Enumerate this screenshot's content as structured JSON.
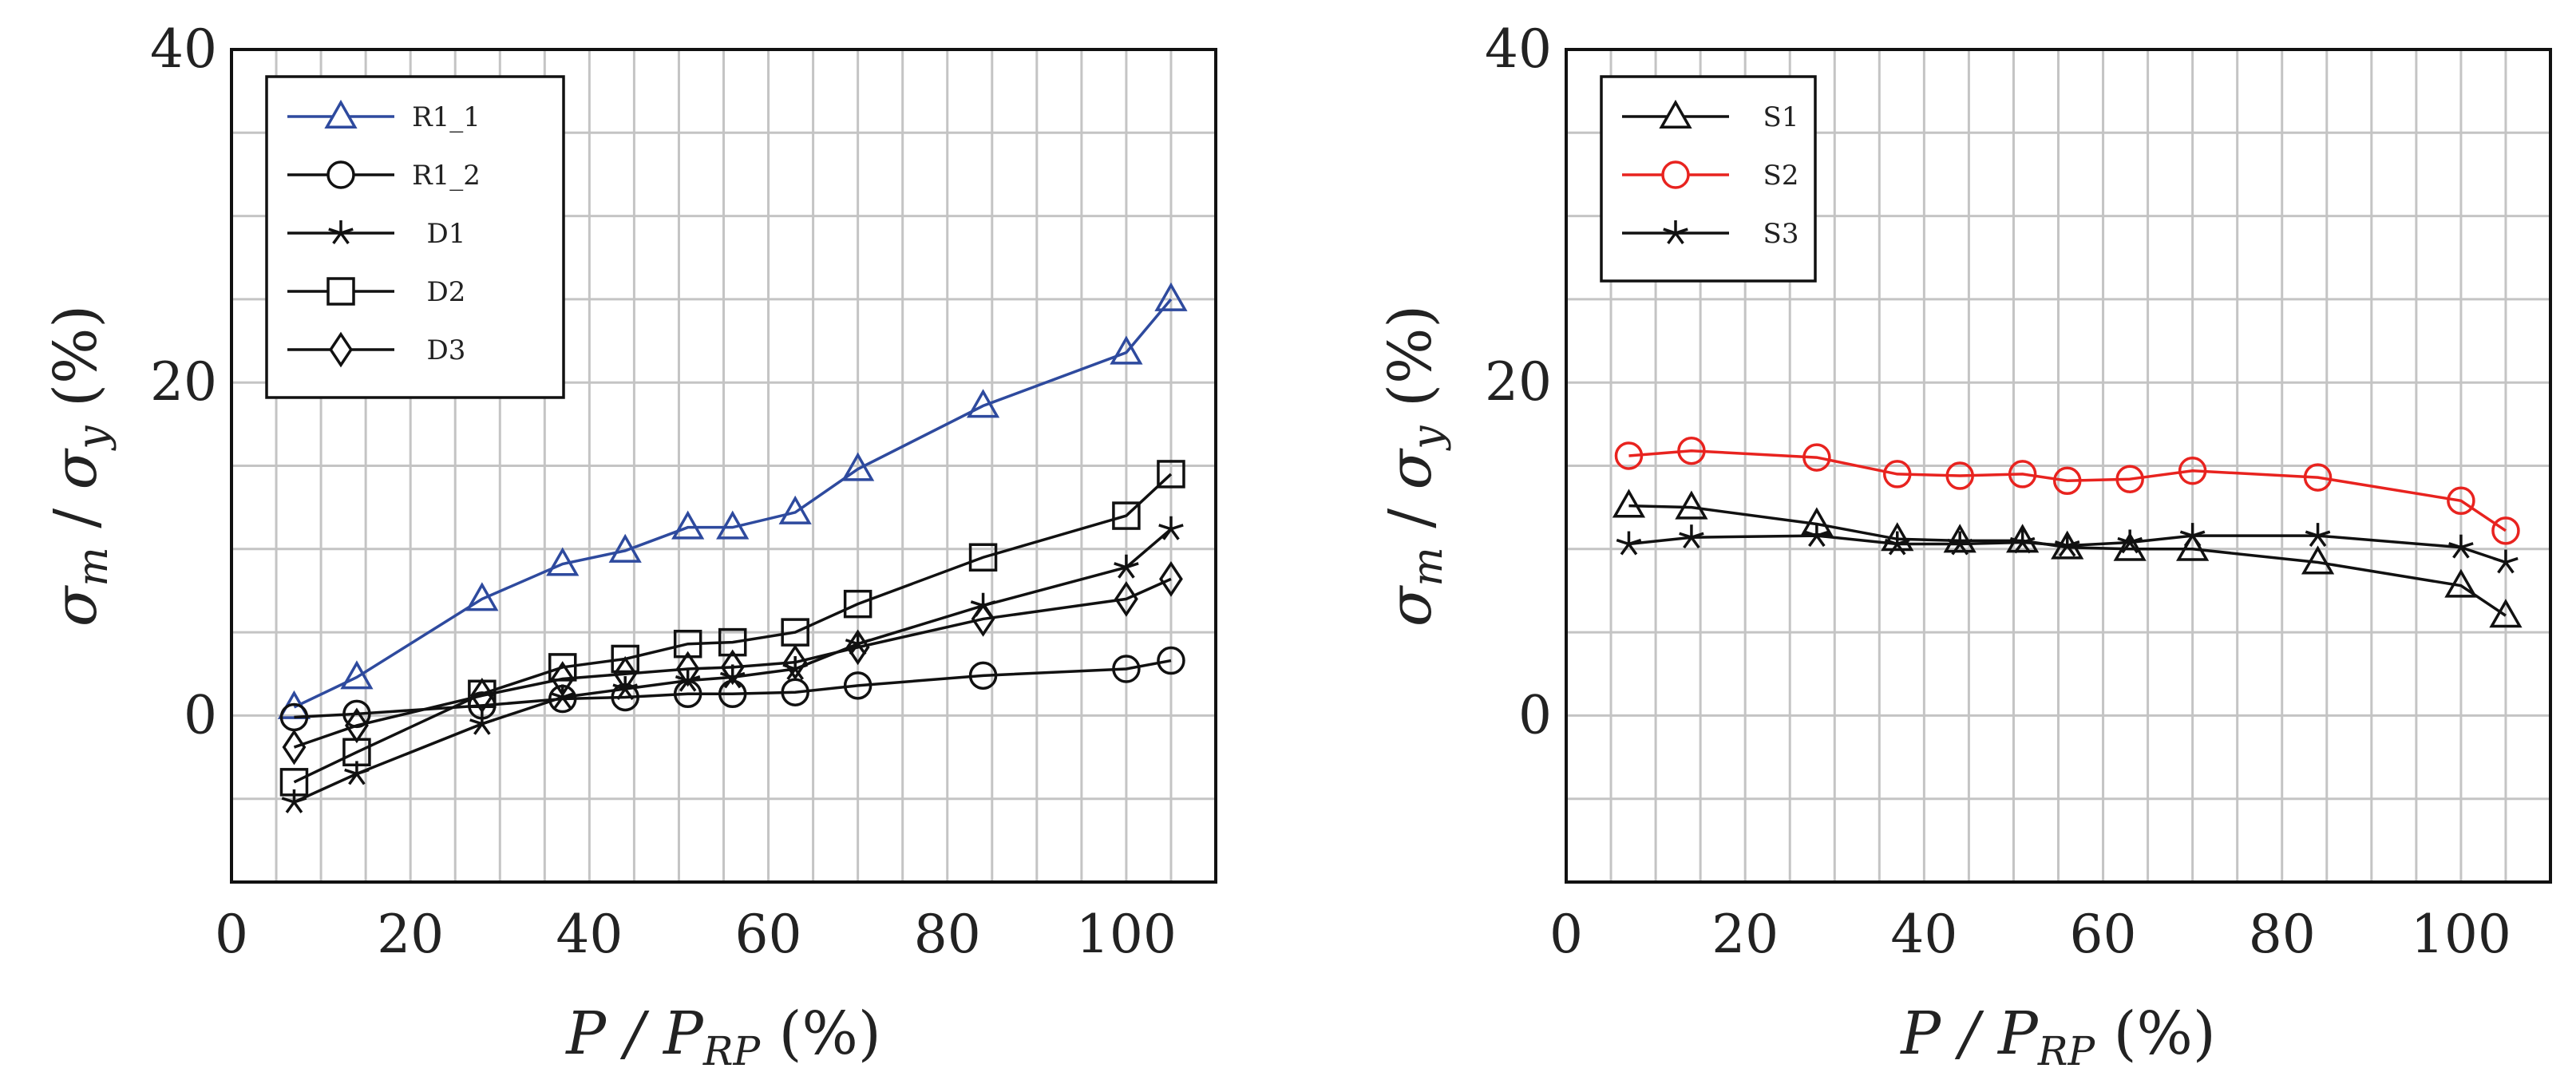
{
  "chart_data": [
    {
      "type": "line",
      "xlabel": "P / P_RP (%)",
      "ylabel": "σm / σy (%)",
      "xlim": [
        0,
        110
      ],
      "ylim": [
        -10,
        40
      ],
      "xticks": [
        0,
        20,
        40,
        60,
        80,
        100
      ],
      "yticks": [
        0,
        20,
        40
      ],
      "grid": true,
      "legend_position": "top-left",
      "series": [
        {
          "name": "R1_1",
          "marker": "triangle",
          "color": "#2e4a9e",
          "x": [
            7,
            14,
            28,
            37,
            44,
            51,
            56,
            63,
            70,
            84,
            100,
            105
          ],
          "y": [
            0.5,
            2.3,
            7,
            9.1,
            9.9,
            11.3,
            11.3,
            12.2,
            14.8,
            18.6,
            21.8,
            25
          ]
        },
        {
          "name": "R1_2",
          "marker": "circle",
          "color": "#111111",
          "x": [
            7,
            14,
            28,
            37,
            44,
            51,
            56,
            63,
            70,
            84,
            100,
            105
          ],
          "y": [
            -0.1,
            0.1,
            0.6,
            1.0,
            1.1,
            1.3,
            1.3,
            1.4,
            1.8,
            2.4,
            2.8,
            3.3
          ]
        },
        {
          "name": "D1",
          "marker": "star",
          "color": "#111111",
          "x": [
            7,
            14,
            28,
            37,
            44,
            51,
            56,
            63,
            70,
            84,
            100,
            105
          ],
          "y": [
            -5.2,
            -3.5,
            -0.5,
            1.1,
            1.6,
            2.1,
            2.3,
            2.8,
            4.3,
            6.6,
            8.9,
            11.2
          ]
        },
        {
          "name": "D2",
          "marker": "square",
          "color": "#111111",
          "x": [
            7,
            14,
            28,
            37,
            44,
            51,
            56,
            63,
            70,
            84,
            100,
            105
          ],
          "y": [
            -4.0,
            -2.2,
            1.3,
            2.9,
            3.4,
            4.3,
            4.4,
            5.0,
            6.7,
            9.5,
            12.0,
            14.5
          ]
        },
        {
          "name": "D3",
          "marker": "diamond",
          "color": "#111111",
          "x": [
            7,
            14,
            28,
            37,
            44,
            51,
            56,
            63,
            70,
            84,
            100,
            105
          ],
          "y": [
            -1.9,
            -0.6,
            1.2,
            2.2,
            2.5,
            2.8,
            2.9,
            3.2,
            4.1,
            5.8,
            7.0,
            8.2
          ]
        }
      ]
    },
    {
      "type": "line",
      "xlabel": "P / P_RP (%)",
      "ylabel": "σm / σy (%)",
      "xlim": [
        0,
        110
      ],
      "ylim": [
        -10,
        40
      ],
      "xticks": [
        0,
        20,
        40,
        60,
        80,
        100
      ],
      "yticks": [
        0,
        20,
        40
      ],
      "grid": true,
      "legend_position": "top-left",
      "series": [
        {
          "name": "S1",
          "marker": "triangle",
          "color": "#111111",
          "x": [
            7,
            14,
            28,
            37,
            44,
            51,
            56,
            63,
            70,
            84,
            100,
            105
          ],
          "y": [
            12.6,
            12.5,
            11.5,
            10.6,
            10.5,
            10.5,
            10.1,
            10.0,
            10.0,
            9.2,
            7.8,
            6.0
          ]
        },
        {
          "name": "S2",
          "marker": "circle",
          "color": "#e8231f",
          "x": [
            7,
            14,
            28,
            37,
            44,
            51,
            56,
            63,
            70,
            84,
            100,
            105
          ],
          "y": [
            15.6,
            15.9,
            15.5,
            14.5,
            14.4,
            14.5,
            14.1,
            14.2,
            14.7,
            14.3,
            12.9,
            11.1
          ]
        },
        {
          "name": "S3",
          "marker": "star",
          "color": "#111111",
          "x": [
            7,
            14,
            28,
            37,
            44,
            51,
            56,
            63,
            70,
            84,
            100,
            105
          ],
          "y": [
            10.3,
            10.7,
            10.8,
            10.3,
            10.3,
            10.4,
            10.2,
            10.4,
            10.8,
            10.8,
            10.1,
            9.2
          ]
        }
      ]
    }
  ]
}
